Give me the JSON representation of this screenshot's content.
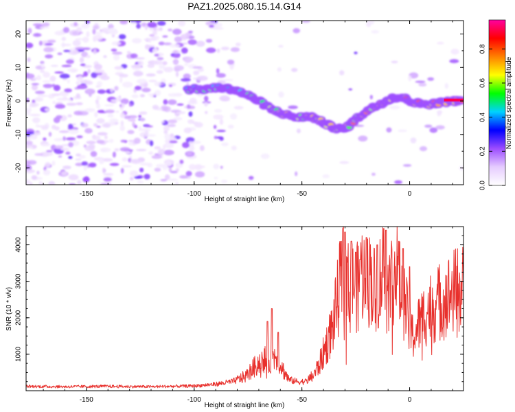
{
  "title": "PAZ1.2025.080.15.14.G14",
  "colors": {
    "snr_line": "#e8302c",
    "axis": "#000000",
    "colorbar": [
      "#ffffff",
      "#e6ccff",
      "#9d4dff",
      "#0000ff",
      "#00d2ff",
      "#00ff00",
      "#ffff00",
      "#ff8000",
      "#ff0000",
      "#ff00a0"
    ]
  },
  "chart_data": [
    {
      "type": "heatmap",
      "xlabel": "Height of straight line (km)",
      "ylabel": "Frequency (Hz)",
      "xlim": [
        -178,
        25
      ],
      "ylim": [
        -25,
        24
      ],
      "x_ticks": [
        -150,
        -100,
        -50,
        0
      ],
      "y_ticks": [
        -20,
        -10,
        0,
        10,
        20
      ],
      "colorbar": {
        "label": "Normalized spectral amplitude",
        "range": [
          0.0,
          0.97
        ],
        "ticks": [
          "0.0",
          "0.2",
          "0.4",
          "0.6",
          "0.8"
        ]
      },
      "ridge": {
        "description_points": [
          [
            -103,
            3.5
          ],
          [
            -95,
            3.5
          ],
          [
            -88,
            4
          ],
          [
            -82,
            3.5
          ],
          [
            -76,
            2
          ],
          [
            -70,
            0
          ],
          [
            -64,
            -2.5
          ],
          [
            -58,
            -4
          ],
          [
            -52,
            -5
          ],
          [
            -46,
            -4.5
          ],
          [
            -40,
            -6.5
          ],
          [
            -35,
            -8
          ],
          [
            -30,
            -8.5
          ],
          [
            -26,
            -6
          ],
          [
            -20,
            -3
          ],
          [
            -14,
            -1
          ],
          [
            -8,
            1
          ],
          [
            -3,
            1
          ],
          [
            2,
            -0.5
          ],
          [
            8,
            -1
          ],
          [
            14,
            -0.5
          ],
          [
            20,
            0
          ],
          [
            25,
            0
          ]
        ],
        "peak_amplitude": 0.95
      }
    },
    {
      "type": "line",
      "xlabel": "Height of straight line (km)",
      "ylabel": "SNR (10 * v/v)",
      "xlim": [
        -178,
        25
      ],
      "ylim": [
        0,
        4500
      ],
      "x_ticks": [
        -150,
        -100,
        -50,
        0
      ],
      "y_ticks": [
        1000,
        2000,
        3000,
        4000
      ],
      "series": [
        {
          "envelope_points": [
            [
              -178,
              120
            ],
            [
              -160,
              110
            ],
            [
              -140,
              120
            ],
            [
              -120,
              110
            ],
            [
              -110,
              120
            ],
            [
              -100,
              130
            ],
            [
              -90,
              180
            ],
            [
              -82,
              250
            ],
            [
              -76,
              400
            ],
            [
              -72,
              650
            ],
            [
              -68,
              900
            ],
            [
              -65,
              750
            ],
            [
              -62,
              1000
            ],
            [
              -59,
              600
            ],
            [
              -56,
              300
            ],
            [
              -52,
              250
            ],
            [
              -48,
              250
            ],
            [
              -45,
              400
            ],
            [
              -42,
              700
            ],
            [
              -39,
              1200
            ],
            [
              -36,
              1700
            ],
            [
              -34,
              2300
            ],
            [
              -32,
              3000
            ],
            [
              -30,
              3300
            ],
            [
              -28,
              2700
            ],
            [
              -26,
              3000
            ],
            [
              -24,
              2800
            ],
            [
              -22,
              3300
            ],
            [
              -20,
              2900
            ],
            [
              -18,
              3200
            ],
            [
              -16,
              2700
            ],
            [
              -14,
              3000
            ],
            [
              -12,
              3400
            ],
            [
              -10,
              2800
            ],
            [
              -8,
              3100
            ],
            [
              -6,
              3300
            ],
            [
              -4,
              2700
            ],
            [
              -2,
              2400
            ],
            [
              0,
              1600
            ],
            [
              2,
              1500
            ],
            [
              4,
              1800
            ],
            [
              6,
              2000
            ],
            [
              8,
              2200
            ],
            [
              10,
              2300
            ],
            [
              12,
              2350
            ],
            [
              14,
              2450
            ],
            [
              16,
              2500
            ],
            [
              18,
              2600
            ],
            [
              20,
              2700
            ],
            [
              22,
              2750
            ],
            [
              25,
              2800
            ]
          ],
          "spikes": [
            [
              -66,
              1900
            ],
            [
              -64,
              2250
            ],
            [
              -61,
              1600
            ],
            [
              -31,
              4450
            ],
            [
              -30,
              4350
            ],
            [
              -27,
              4100
            ],
            [
              -25,
              3800
            ],
            [
              -23,
              3600
            ],
            [
              -20,
              4200
            ],
            [
              -15,
              4000
            ],
            [
              -12,
              4450
            ],
            [
              -11,
              4400
            ],
            [
              -5,
              4100
            ],
            [
              -3,
              3900
            ],
            [
              0,
              3400
            ],
            [
              24,
              3000
            ]
          ]
        }
      ]
    }
  ]
}
